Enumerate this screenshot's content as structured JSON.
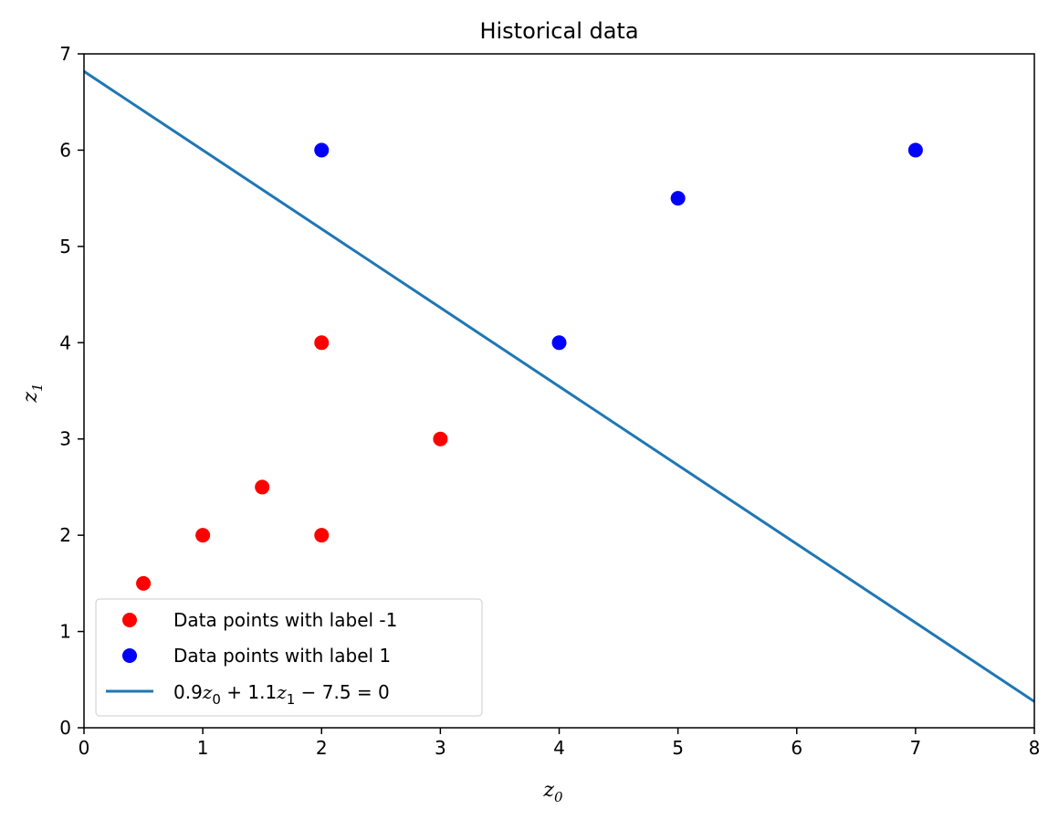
{
  "chart_data": {
    "type": "scatter",
    "title": "Historical data",
    "xlabel": "z_0",
    "ylabel": "z_1",
    "xlim": [
      0,
      8
    ],
    "ylim": [
      0,
      7
    ],
    "xticks": [
      0,
      1,
      2,
      3,
      4,
      5,
      6,
      7,
      8
    ],
    "yticks": [
      0,
      1,
      2,
      3,
      4,
      5,
      6,
      7
    ],
    "grid": false,
    "legend_position": "lower-left",
    "series": [
      {
        "name": "Data points with label -1",
        "kind": "scatter",
        "color": "#ff0000",
        "points": [
          [
            0.5,
            1.5
          ],
          [
            1,
            2
          ],
          [
            1.5,
            2.5
          ],
          [
            2,
            2
          ],
          [
            2,
            4
          ],
          [
            3,
            3
          ]
        ]
      },
      {
        "name": "Data points with label 1",
        "kind": "scatter",
        "color": "#0000ff",
        "points": [
          [
            2,
            6
          ],
          [
            4,
            4
          ],
          [
            5,
            5.5
          ],
          [
            7,
            6
          ]
        ]
      },
      {
        "name": "0.9z_0 + 1.1z_1 − 7.5 = 0",
        "kind": "line",
        "color": "#1f77b4",
        "equation": {
          "a": 0.9,
          "b": 1.1,
          "c": -7.5
        }
      }
    ]
  }
}
